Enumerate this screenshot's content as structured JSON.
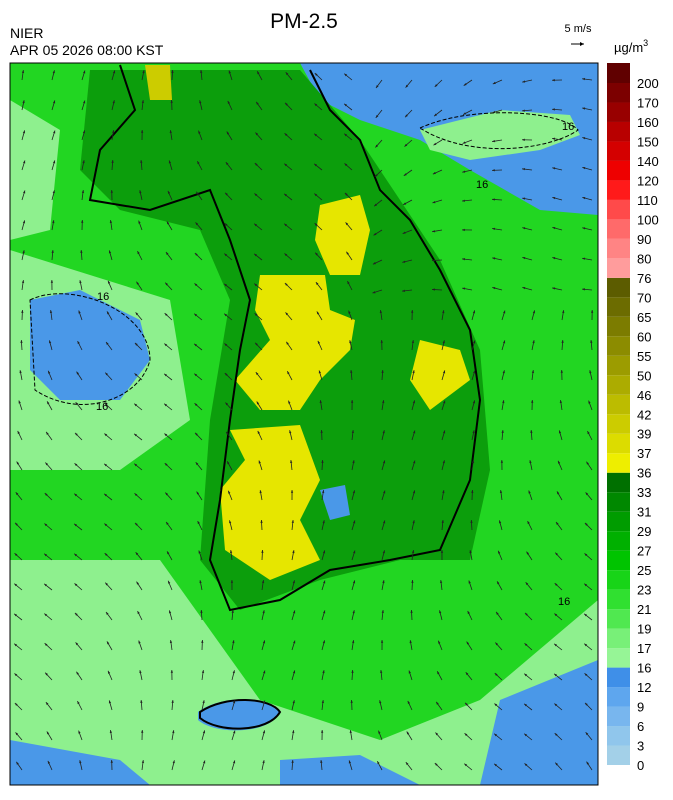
{
  "header": {
    "title": "PM-2.5",
    "agency": "NIER",
    "timestamp": "APR 05 2026 08:00 KST",
    "wind_scale": "5 m/s"
  },
  "legend": {
    "unit": "µg/m",
    "unit_exponent": "3",
    "labels": [
      0,
      3,
      6,
      9,
      12,
      16,
      17,
      19,
      21,
      23,
      25,
      27,
      29,
      31,
      33,
      36,
      37,
      39,
      42,
      46,
      50,
      55,
      60,
      65,
      70,
      76,
      80,
      90,
      100,
      110,
      120,
      140,
      150,
      160,
      170,
      200
    ],
    "colors": [
      "#a3d0e8",
      "#90c6ec",
      "#78b6ee",
      "#5ea6ee",
      "#3f8fe8",
      "#96f596",
      "#78f078",
      "#50e850",
      "#30e030",
      "#18d418",
      "#00c400",
      "#00b000",
      "#009c00",
      "#008800",
      "#007000",
      "#eeee00",
      "#dcdc00",
      "#cccc00",
      "#bcbc00",
      "#acac00",
      "#9c9c00",
      "#8c8c00",
      "#7c7c00",
      "#6c6c00",
      "#5c5c00",
      "#ff9c9c",
      "#ff8484",
      "#ff6a6a",
      "#ff4a4a",
      "#ff1a1a",
      "#ee0000",
      "#d40000",
      "#b80000",
      "#980000",
      "#7c0000",
      "#600000"
    ]
  },
  "map": {
    "contour_labels": [
      16,
      16,
      16,
      16,
      16
    ]
  }
}
